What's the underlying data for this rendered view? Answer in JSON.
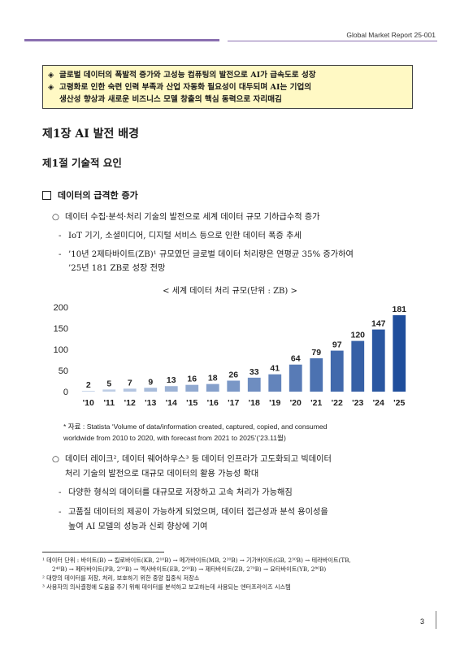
{
  "header": {
    "report": "Global Market Report 25-001"
  },
  "summary": {
    "line1": "글로벌 데이터의 폭발적 증가와 고성능 컴퓨팅의 발전으로 AI가 급속도로 성장",
    "line2a": "고령화로 인한 숙련 인력 부족과 산업 자동화 필요성이 대두되며 AI는 기업의",
    "line2b": "생산성 향상과 새로운 비즈니스 모델 창출의 핵심 동력으로 자리매김",
    "diamond": "◈"
  },
  "chapter": "제1장 AI 발전 배경",
  "section": "제1절 기술적 요인",
  "subsection": "데이터의 급격한 증가",
  "body": {
    "b1": "데이터 수집·분석·처리 기술의 발전으로 세계 데이터 규모 기하급수적 증가",
    "d1": "IoT 기기, 소셜미디어, 디지털 서비스 등으로 인한 데이터 폭증 추세",
    "d2a": "’10년 2제타바이트(ZB)¹ 규모였던 글로벌 데이터 처리량은 연평균 35% 증가하여",
    "d2b": "’25년 181 ZB로 성장 전망",
    "b2a": "데이터 레이크², 데이터 웨어하우스³ 등 데이터 인프라가 고도화되고 빅데이터",
    "b2b": "처리 기술의 발전으로 대규모 데이터의 활용 가능성 확대",
    "d3": "다양한 형식의 데이터를 대규모로 저장하고 고속 처리가 가능해짐",
    "d4a": "고품질 데이터의 제공이 가능하게 되었으며, 데이터 접근성과 분석 용이성을",
    "d4b": "높여 AI 모델의 성능과 신뢰 향상에 기여",
    "circle": "○",
    "dash": "-"
  },
  "chart_title": "< 세계 데이터 처리 규모(단위 : ZB) >",
  "chart_data": {
    "type": "bar",
    "categories": [
      "'10",
      "'11",
      "'12",
      "'13",
      "'14",
      "'15",
      "'16",
      "'17",
      "'18",
      "'19",
      "'20",
      "'21",
      "'22",
      "'23",
      "'24",
      "'25"
    ],
    "values": [
      2,
      5,
      7,
      9,
      13,
      16,
      18,
      26,
      33,
      41,
      64,
      79,
      97,
      120,
      147,
      181
    ],
    "ylim": [
      0,
      200
    ],
    "yticks": [
      0,
      50,
      100,
      150,
      200
    ],
    "grid": false,
    "bar_color_light": "#c9d6ea",
    "bar_color_dark": "#1f4e9c"
  },
  "source": {
    "line1": "* 자료 : Statista ‘Volume of data/information created, captured, copied, and consumed",
    "line2": "worldwide from 2010 to 2020, with forecast from 2021 to 2025’(’23.11월)"
  },
  "footnotes": {
    "f1a": "¹ 데이터 단위 : 바이트(B) → 킬로바이트(KB, 2¹⁰B) → 메가바이트(MB, 2²⁰B) → 기가바이트(GB, 2³⁰B) → 테라바이트(TB,",
    "f1b": "2⁴⁰B) → 페타바이트(PB, 2⁵⁰B) → 엑사바이트(EB, 2⁶⁰B) → 제타바이트(ZB, 2⁷⁰B) → 요타바이트(YB, 2⁸⁰B)",
    "f2": "² 대량의 데이터를 저장, 처리, 보호하기 위한 중앙 집중식 저장소",
    "f3": "³ 사용자의 의사결정에 도움을 주기 위해 데이터를 분석하고 보고하는데 사용되는 엔터프라이즈 시스템"
  },
  "page_number": "3"
}
